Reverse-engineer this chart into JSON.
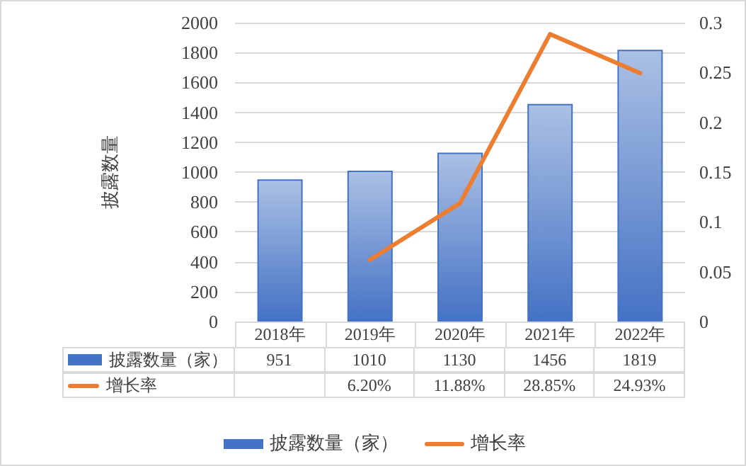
{
  "chart_data": {
    "type": "bar",
    "ylabel": "披露数量",
    "categories": [
      "2018年",
      "2019年",
      "2020年",
      "2021年",
      "2022年"
    ],
    "series": [
      {
        "name": "披露数量（家）",
        "color": "#4472c4",
        "values": [
          951,
          1010,
          1130,
          1456,
          1819
        ]
      },
      {
        "name": "增长率",
        "type": "line",
        "axis": "y2",
        "color": "#ed7d31",
        "values": [
          null,
          0.062,
          0.1188,
          0.2885,
          0.2493
        ],
        "value_labels": [
          null,
          "6.20%",
          "11.88%",
          "28.85%",
          "24.93%"
        ]
      }
    ],
    "data_labels": true,
    "ylim": [
      0,
      2000
    ],
    "yticks": [
      0,
      200,
      400,
      600,
      800,
      1000,
      1200,
      1400,
      1600,
      1800,
      2000
    ],
    "y2lim": [
      0,
      0.3
    ],
    "y2ticks": [
      0,
      0.05,
      0.1,
      0.15,
      0.2,
      0.25,
      0.3
    ],
    "grid": "y",
    "legend": "bottom",
    "marker": "none",
    "line_style": "solid"
  }
}
